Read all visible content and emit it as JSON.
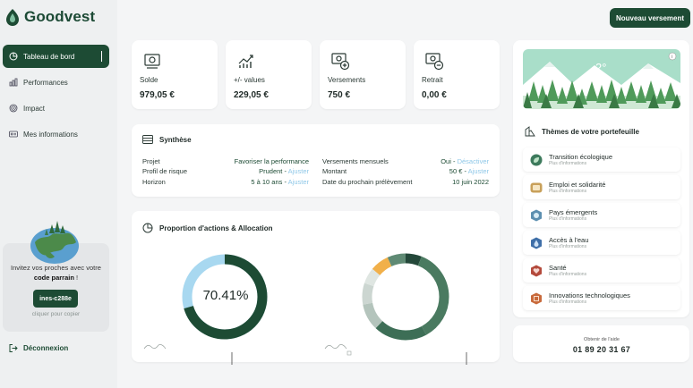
{
  "brand": {
    "name": "Goodvest",
    "color": "#1d4b34"
  },
  "nav": [
    {
      "label": "Tableau de bord",
      "icon": "dashboard-icon",
      "active": true
    },
    {
      "label": "Performances",
      "icon": "performance-chart-icon",
      "active": false
    },
    {
      "label": "Impact",
      "icon": "fingerprint-icon",
      "active": false
    },
    {
      "label": "Mes informations",
      "icon": "info-card-icon",
      "active": false
    }
  ],
  "referral": {
    "text_before": "Invitez vos proches avec votre ",
    "text_bold": "code parrain",
    "text_after": " !",
    "code": "ines-c288e",
    "copy_hint": "cliquer pour copier"
  },
  "logout_label": "Déconnexion",
  "header": {
    "new_payment_label": "Nouveau versement"
  },
  "stats": [
    {
      "label": "Solde",
      "value": "979,05 €",
      "icon": "balance-icon"
    },
    {
      "label": "+/- values",
      "value": "229,05 €",
      "icon": "growth-chart-icon"
    },
    {
      "label": "Versements",
      "value": "750 €",
      "icon": "deposit-icon"
    },
    {
      "label": "Retrait",
      "value": "0,00 €",
      "icon": "withdrawal-icon"
    }
  ],
  "synthese": {
    "title": "Synthèse",
    "left": [
      {
        "label": "Projet",
        "value": "Favoriser la performance",
        "action": ""
      },
      {
        "label": "Profil de risque",
        "value": "Prudent",
        "action": "Ajuster"
      },
      {
        "label": "Horizon",
        "value": "5 à 10 ans",
        "action": "Ajuster"
      }
    ],
    "right": [
      {
        "label": "Versements mensuels",
        "value": "Oui",
        "action": "Désactiver"
      },
      {
        "label": "Montant",
        "value": "50 €",
        "action": "Ajuster"
      },
      {
        "label": "Date du prochain prélèvement",
        "value": "10 juin 2022",
        "action": ""
      }
    ]
  },
  "allocation": {
    "title": "Proportion d'actions & Allocation",
    "equity_percent": 70.41,
    "equity_label": "70.41%",
    "allocation_segments": [
      {
        "color": "#24483a",
        "fraction": 0.06
      },
      {
        "color": "#4a7a60",
        "fraction": 0.36
      },
      {
        "color": "#3d6e56",
        "fraction": 0.2
      },
      {
        "color": "#b4c4bc",
        "fraction": 0.1
      },
      {
        "color": "#ccd6d1",
        "fraction": 0.08
      },
      {
        "color": "#dfe6e2",
        "fraction": 0.06
      },
      {
        "color": "#f1b04a",
        "fraction": 0.07
      },
      {
        "color": "#5f8a74",
        "fraction": 0.07
      }
    ]
  },
  "weather": {
    "temperature": "2°"
  },
  "themes": {
    "title": "Thèmes de votre portefeuille",
    "items": [
      {
        "name": "Transition écologique",
        "sub": "Plus d'informations",
        "icon": "ecology-icon",
        "color": "#3d7a5c"
      },
      {
        "name": "Emploi et solidarité",
        "sub": "Plus d'informations",
        "icon": "employment-icon",
        "color": "#c8a05a"
      },
      {
        "name": "Pays émergents",
        "sub": "Plus d'informations",
        "icon": "emerging-countries-icon",
        "color": "#5c8fb0"
      },
      {
        "name": "Accès à l'eau",
        "sub": "Plus d'informations",
        "icon": "water-icon",
        "color": "#3f6fa8"
      },
      {
        "name": "Santé",
        "sub": "Plus d'informations",
        "icon": "health-icon",
        "color": "#b44a3c"
      },
      {
        "name": "Innovations technologiques",
        "sub": "Plus d'informations",
        "icon": "technology-icon",
        "color": "#c86a3c"
      }
    ]
  },
  "help": {
    "label": "Obtenir de l'aide",
    "phone": "01 89 20 31 67"
  }
}
